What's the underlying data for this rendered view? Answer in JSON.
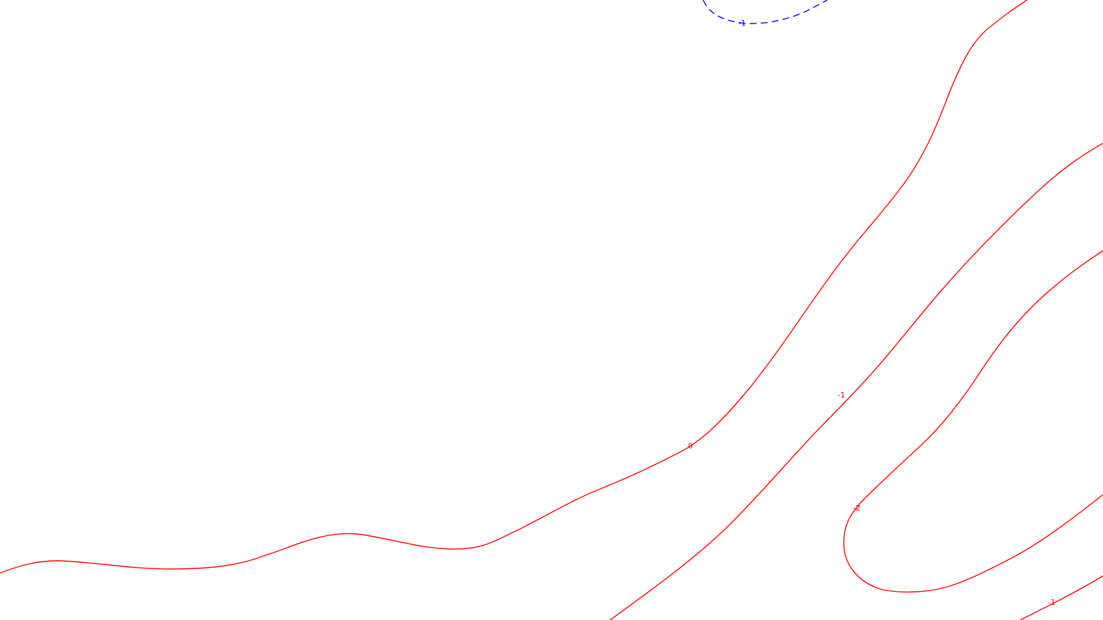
{
  "map": {
    "styles": {
      "positive_color": "#ff0000",
      "negative_color": "#0000ff"
    },
    "contours": [
      {
        "id": "contour-0-main",
        "level": "0",
        "style": "solid",
        "color_key": "positive_color",
        "label": "0"
      },
      {
        "id": "contour-neg1-left",
        "level": "-1",
        "style": "solid",
        "color_key": "positive_color",
        "label": "-1"
      },
      {
        "id": "contour-neg2",
        "level": "-2",
        "style": "solid",
        "color_key": "positive_color",
        "label": "-2"
      },
      {
        "id": "contour-neg1-right",
        "level": "-1",
        "style": "solid",
        "color_key": "positive_color",
        "label": "-1"
      },
      {
        "id": "contour-neg1-top-blue",
        "level": "-1",
        "style": "dashed",
        "color_key": "negative_color",
        "label": "-1"
      }
    ]
  }
}
